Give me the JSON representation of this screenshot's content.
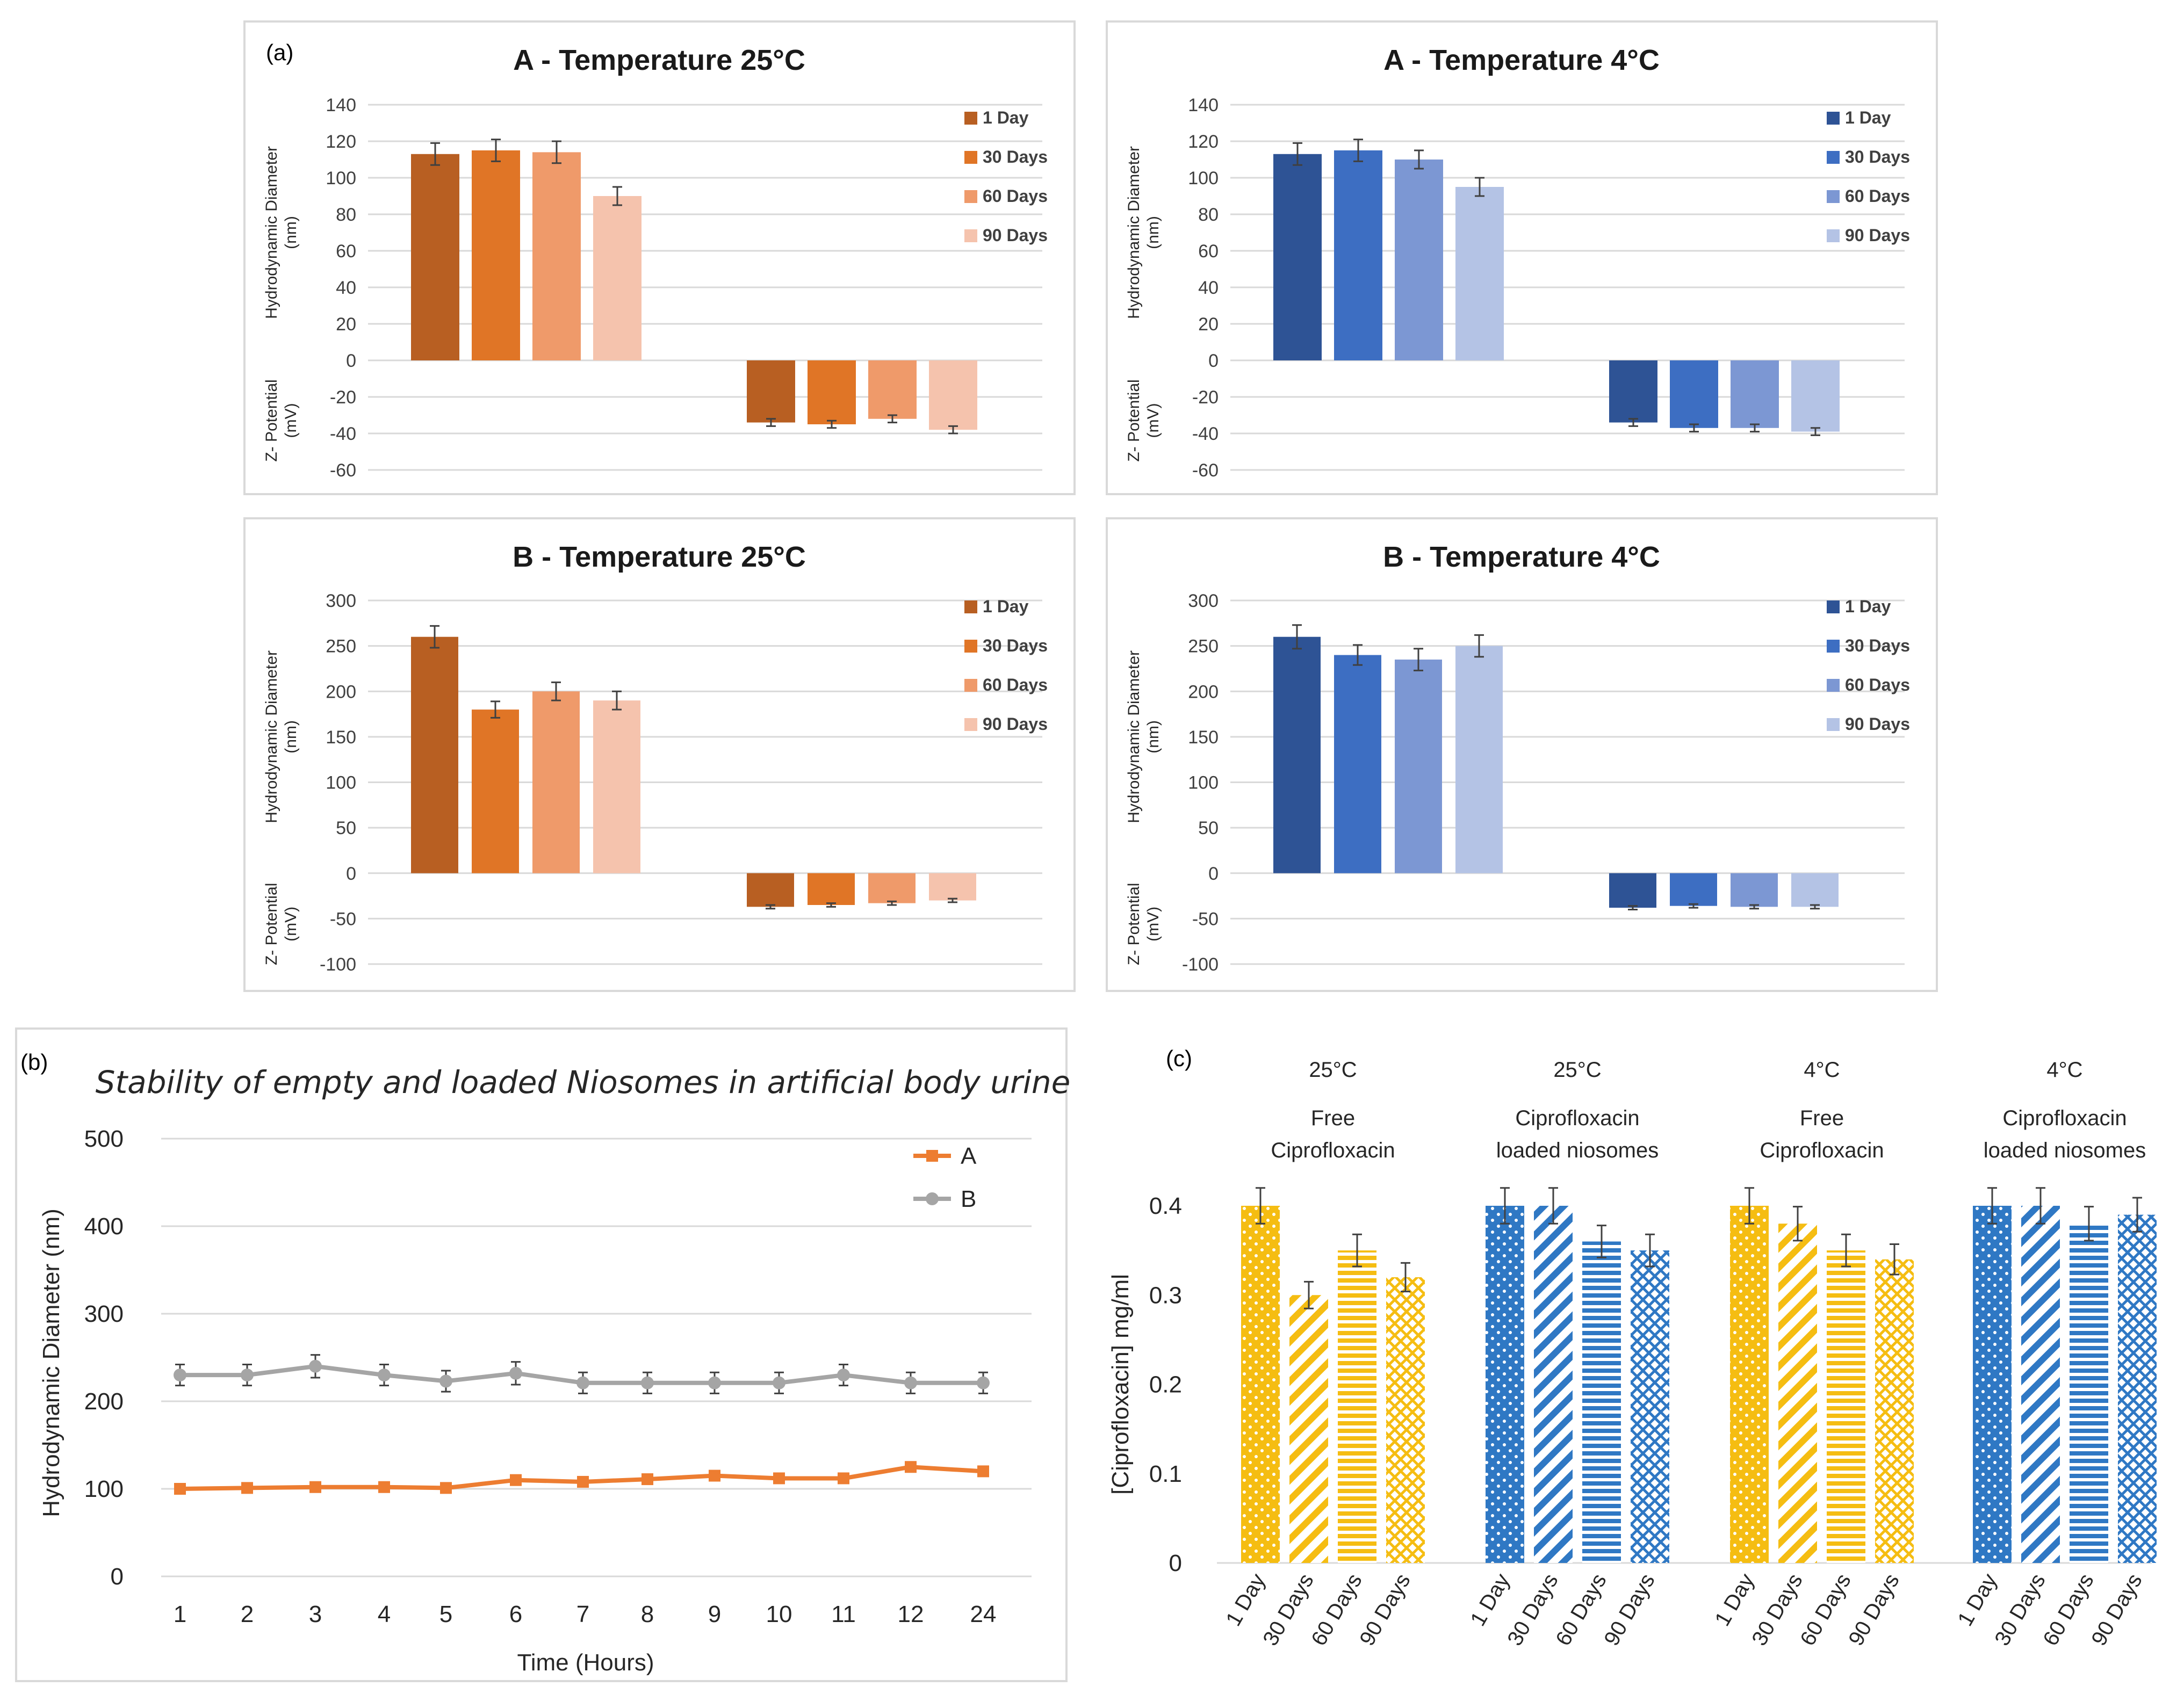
{
  "figure": {
    "label_a": "(a)",
    "label_b": "(b)",
    "label_c": "(c)"
  },
  "colors": {
    "orange": [
      "#b85f22",
      "#e07526",
      "#ef9a6a",
      "#f5c3ad"
    ],
    "blue": [
      "#2e5395",
      "#3d6ec2",
      "#7c97d3",
      "#b4c3e5"
    ],
    "lineA": "#ed7d31",
    "lineB": "#a5a5a5",
    "yellow": "#f5bd12",
    "cblue": "#2f78c4"
  },
  "chart_data": [
    {
      "type": "bar",
      "panel": "a-1",
      "title": "A - Temperature 25°C",
      "ylabel_top": [
        "Hydrodynamic Diameter",
        "(nm)"
      ],
      "ylabel_bottom": [
        "Z- Potential",
        "(mV)"
      ],
      "ylim": [
        -60,
        140
      ],
      "ticks": [
        140,
        120,
        100,
        80,
        60,
        40,
        20,
        0,
        -20,
        -40,
        -60
      ],
      "legend": [
        "1 Day",
        "30 Days",
        "60 Days",
        "90 Days"
      ],
      "palette": "orange",
      "groups": [
        {
          "name": "Hydrodynamic Diameter",
          "values": [
            113,
            115,
            114,
            90
          ],
          "errors": [
            6,
            6,
            6,
            5
          ]
        },
        {
          "name": "Z- Potential",
          "values": [
            -34,
            -35,
            -32,
            -38
          ],
          "errors": [
            2,
            2,
            2,
            2
          ]
        }
      ]
    },
    {
      "type": "bar",
      "panel": "a-2",
      "title": "A - Temperature 4°C",
      "ylabel_top": [
        "Hydrodynamic Diameter",
        "(nm)"
      ],
      "ylabel_bottom": [
        "Z- Potential",
        "(mV)"
      ],
      "ylim": [
        -60,
        140
      ],
      "ticks": [
        140,
        120,
        100,
        80,
        60,
        40,
        20,
        0,
        -20,
        -40,
        -60
      ],
      "legend": [
        "1 Day",
        "30 Days",
        "60 Days",
        "90 Days"
      ],
      "palette": "blue",
      "groups": [
        {
          "name": "Hydrodynamic Diameter",
          "values": [
            113,
            115,
            110,
            95
          ],
          "errors": [
            6,
            6,
            5,
            5
          ]
        },
        {
          "name": "Z- Potential",
          "values": [
            -34,
            -37,
            -37,
            -39
          ],
          "errors": [
            2,
            2,
            2,
            2
          ]
        }
      ]
    },
    {
      "type": "bar",
      "panel": "a-3",
      "title": "B - Temperature 25°C",
      "ylabel_top": [
        "Hydrodynamic Diameter",
        "(nm)"
      ],
      "ylabel_bottom": [
        "Z- Potential",
        "(mV)"
      ],
      "ylim": [
        -100,
        300
      ],
      "ticks": [
        300,
        250,
        200,
        150,
        100,
        50,
        0,
        -50,
        -100
      ],
      "legend": [
        "1 Day",
        "30 Days",
        "60 Days",
        "90 Days"
      ],
      "palette": "orange",
      "groups": [
        {
          "name": "Hydrodynamic Diameter",
          "values": [
            260,
            180,
            200,
            190
          ],
          "errors": [
            12,
            9,
            10,
            10
          ]
        },
        {
          "name": "Z- Potential",
          "values": [
            -37,
            -35,
            -33,
            -30
          ],
          "errors": [
            2,
            2,
            2,
            2
          ]
        }
      ]
    },
    {
      "type": "bar",
      "panel": "a-4",
      "title": "B - Temperature 4°C",
      "ylabel_top": [
        "Hydrodynamic Diameter",
        "(nm)"
      ],
      "ylabel_bottom": [
        "Z- Potential",
        "(mV)"
      ],
      "ylim": [
        -100,
        300
      ],
      "ticks": [
        300,
        250,
        200,
        150,
        100,
        50,
        0,
        -50,
        -100
      ],
      "legend": [
        "1 Day",
        "30 Days",
        "60 Days",
        "90 Days"
      ],
      "palette": "blue",
      "groups": [
        {
          "name": "Hydrodynamic Diameter",
          "values": [
            260,
            240,
            235,
            250
          ],
          "errors": [
            13,
            11,
            12,
            12
          ]
        },
        {
          "name": "Z- Potential",
          "values": [
            -38,
            -36,
            -37,
            -37
          ],
          "errors": [
            2,
            2,
            2,
            2
          ]
        }
      ]
    },
    {
      "type": "line",
      "panel": "b",
      "title": "Stability of empty and loaded Niosomes in artificial body urine",
      "xlabel": "Time (Hours)",
      "ylabel": "Hydrodynamic Diameter (nm)",
      "categories": [
        "1",
        "2",
        "3",
        "4",
        "5",
        "6",
        "7",
        "8",
        "9",
        "10",
        "11",
        "12",
        "24"
      ],
      "ylim": [
        0,
        500
      ],
      "ticks": [
        500,
        400,
        300,
        200,
        100,
        0
      ],
      "series": [
        {
          "name": "A",
          "values": [
            100,
            101,
            102,
            102,
            101,
            110,
            108,
            111,
            115,
            112,
            112,
            125,
            120
          ],
          "errors": [
            4,
            4,
            4,
            4,
            4,
            4,
            4,
            4,
            4,
            4,
            4,
            4,
            4
          ]
        },
        {
          "name": "B",
          "values": [
            230,
            230,
            240,
            230,
            223,
            232,
            221,
            221,
            221,
            221,
            230,
            221,
            221
          ],
          "errors": [
            12,
            12,
            13,
            12,
            12,
            13,
            12,
            12,
            12,
            12,
            12,
            12,
            12
          ]
        }
      ]
    },
    {
      "type": "bar",
      "panel": "c",
      "ylabel": "[Ciprofloxacin] mg/ml",
      "ylim": [
        0,
        0.4
      ],
      "ticks": [
        "0.4",
        "0.3",
        "0.2",
        "0.1",
        "0"
      ],
      "tick_values": [
        0.4,
        0.3,
        0.2,
        0.1,
        0
      ],
      "categories": [
        "1 Day",
        "30 Days",
        "60 Days",
        "90 Days"
      ],
      "groups": [
        {
          "temp": "25°C",
          "label": [
            "Free",
            "Ciprofloxacin"
          ],
          "color": "yellow",
          "values": [
            0.4,
            0.3,
            0.35,
            0.32
          ],
          "errors": [
            0.02,
            0.015,
            0.018,
            0.016
          ]
        },
        {
          "temp": "25°C",
          "label": [
            "Ciprofloxacin",
            "loaded niosomes"
          ],
          "color": "cblue",
          "values": [
            0.4,
            0.4,
            0.36,
            0.35
          ],
          "errors": [
            0.02,
            0.02,
            0.018,
            0.018
          ]
        },
        {
          "temp": "4°C",
          "label": [
            "Free",
            "Ciprofloxacin"
          ],
          "color": "yellow",
          "values": [
            0.4,
            0.38,
            0.35,
            0.34
          ],
          "errors": [
            0.02,
            0.019,
            0.018,
            0.017
          ]
        },
        {
          "temp": "4°C",
          "label": [
            "Ciprofloxacin",
            "loaded niosomes"
          ],
          "color": "cblue",
          "values": [
            0.4,
            0.4,
            0.38,
            0.39
          ],
          "errors": [
            0.02,
            0.02,
            0.019,
            0.019
          ]
        }
      ]
    }
  ]
}
